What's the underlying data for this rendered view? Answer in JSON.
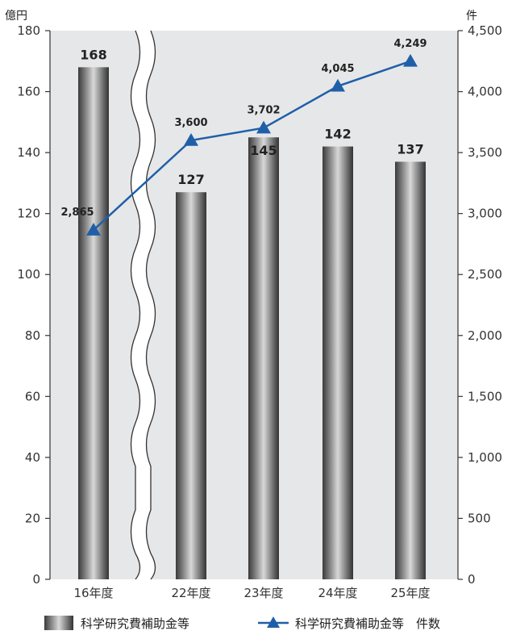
{
  "chart_data": {
    "type": "bar",
    "categories": [
      "16年度",
      "22年度",
      "23年度",
      "24年度",
      "25年度"
    ],
    "series": [
      {
        "name": "科学研究費補助金等",
        "type": "bar",
        "axis": "left",
        "values": [
          168,
          127,
          145,
          142,
          137
        ],
        "labels": [
          "168",
          "127",
          "145",
          "142",
          "137"
        ]
      },
      {
        "name": "科学研究費補助金等　件数",
        "type": "line",
        "axis": "right",
        "values": [
          2865,
          3600,
          3702,
          4045,
          4249
        ],
        "labels": [
          "2,865",
          "3,600",
          "3,702",
          "4,045",
          "4,249"
        ],
        "color": "#1f5fa8"
      }
    ],
    "left_axis": {
      "unit": "億円",
      "ylim": [
        0,
        180
      ],
      "ticks": [
        "0",
        "20",
        "40",
        "60",
        "80",
        "100",
        "120",
        "140",
        "160",
        "180"
      ]
    },
    "right_axis": {
      "unit": "件",
      "ylim": [
        0,
        4500
      ],
      "ticks": [
        "0",
        "500",
        "1,000",
        "1,500",
        "2,000",
        "2,500",
        "3,000",
        "3,500",
        "4,000",
        "4,500"
      ]
    },
    "axis_break_after": "16年度",
    "plot_background": "#e6e7e9",
    "legend_position": "bottom"
  },
  "legend": {
    "bar_label": "科学研究費補助金等",
    "line_label": "科学研究費補助金等　件数"
  }
}
